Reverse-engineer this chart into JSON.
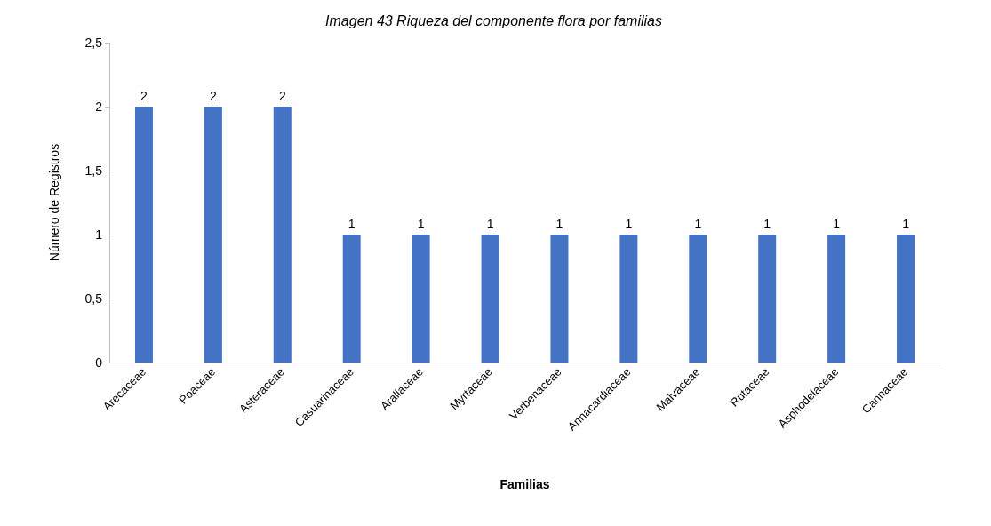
{
  "chart_data": {
    "type": "bar",
    "title": "Imagen 43 Riqueza del componente flora por familias",
    "xlabel": "Familias",
    "ylabel": "Número de Registros",
    "categories": [
      "Arecaceae",
      "Poaceae",
      "Asteraceae",
      "Casuarinaceae",
      "Araliaceae",
      "Myrtaceae",
      "Verbenaceae",
      "Annacardiaceae",
      "Malvaceae",
      "Rutaceae",
      "Asphodelaceae",
      "Cannaceae"
    ],
    "values": [
      2,
      2,
      2,
      1,
      1,
      1,
      1,
      1,
      1,
      1,
      1,
      1
    ],
    "color": "#4472c4",
    "ylim": [
      0,
      2.5
    ],
    "yticks": [
      0,
      {
        "value": 0.5,
        "label": "0,5"
      },
      1,
      {
        "value": 1.5,
        "label": "1,5"
      },
      2,
      {
        "value": 2.5,
        "label": "2,5"
      }
    ],
    "grid": false,
    "data_labels": true
  }
}
